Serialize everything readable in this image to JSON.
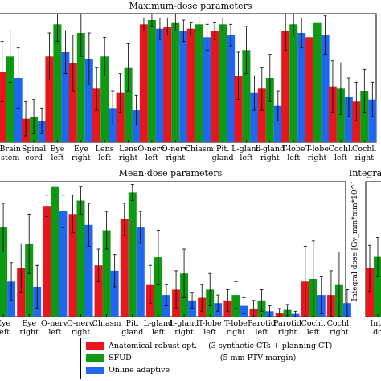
{
  "colors": {
    "red": "#e8171d",
    "green": "#0f9a14",
    "blue": "#1f66f0"
  },
  "chart_data": [
    {
      "type": "bar",
      "title": "Maximum-dose parameters",
      "categories": [
        [
          "Brain",
          "stem"
        ],
        [
          "Spinal",
          "cord"
        ],
        [
          "Eye",
          "left"
        ],
        [
          "Eye",
          "right"
        ],
        [
          "Lens",
          "left"
        ],
        [
          "Lens",
          "right"
        ],
        [
          "O-nerv.",
          "left"
        ],
        [
          "O-nerv.",
          "right"
        ],
        [
          "Chiasm"
        ],
        [
          "Pit.",
          "gland"
        ],
        [
          "L-gland",
          "left"
        ],
        [
          "L-gland",
          "right"
        ],
        [
          "T-lobe",
          "left"
        ],
        [
          "T-lobe",
          "right"
        ],
        [
          "Cochl.",
          "left"
        ],
        [
          "Cochl.",
          "right"
        ]
      ],
      "ylim": [
        0,
        60
      ],
      "series": [
        {
          "name": "Anatomical robust opt.",
          "values": [
            33,
            11,
            40,
            37,
            25,
            23,
            55,
            54,
            53,
            52,
            31,
            25,
            52,
            49,
            26,
            19
          ],
          "err": [
            14,
            8,
            11,
            13,
            10,
            9,
            3,
            4,
            3,
            4,
            11,
            10,
            9,
            12,
            12,
            9
          ]
        },
        {
          "name": "SFUD",
          "values": [
            40,
            12,
            55,
            51,
            40,
            35,
            57,
            56,
            55,
            55,
            43,
            30,
            55,
            56,
            25,
            24
          ],
          "err": [
            12,
            8,
            8,
            11,
            9,
            11,
            3,
            4,
            3,
            3,
            11,
            11,
            5,
            6,
            12,
            10
          ]
        },
        {
          "name": "Online adaptive",
          "values": [
            30,
            10,
            42,
            39,
            16,
            15,
            53,
            52,
            49,
            50,
            23,
            17,
            51,
            50,
            21,
            20
          ],
          "err": [
            14,
            6,
            10,
            12,
            8,
            7,
            5,
            5,
            6,
            5,
            8,
            7,
            7,
            9,
            9,
            8
          ]
        }
      ]
    },
    {
      "type": "bar",
      "title": "Mean-dose parameters",
      "categories": [
        [
          "Eye",
          "left"
        ],
        [
          "Eye",
          "right"
        ],
        [
          "O-nerv.",
          "left"
        ],
        [
          "O-nerv.",
          "right"
        ],
        [
          "Chiasm"
        ],
        [
          "Pit.",
          "gland"
        ],
        [
          "L-gland",
          "left"
        ],
        [
          "L-gland",
          "right"
        ],
        [
          "T-lobe",
          "left"
        ],
        [
          "T-lobe",
          "right"
        ],
        [
          "Parotid",
          "left"
        ],
        [
          "Parotid",
          "right"
        ],
        [
          "Cochl.",
          "left"
        ],
        [
          "Cochl.",
          "right"
        ]
      ],
      "ylim": [
        0,
        50
      ],
      "series": [
        {
          "name": "Anatomical robust opt.",
          "values": [
            19,
            18,
            41,
            38,
            19,
            36,
            12,
            10,
            7,
            6,
            3,
            1.5,
            13,
            8
          ],
          "err": [
            9,
            9,
            4,
            7,
            6,
            6,
            7,
            7,
            5,
            4,
            3,
            1.5,
            13,
            9
          ]
        },
        {
          "name": "SFUD",
          "values": [
            33,
            27,
            48,
            43,
            32,
            46,
            22,
            16,
            10,
            8,
            6,
            2.5,
            14,
            12
          ],
          "err": [
            9,
            11,
            3,
            5,
            7,
            3,
            10,
            9,
            6,
            5,
            4,
            2,
            14,
            12
          ]
        },
        {
          "name": "Online adaptive",
          "values": [
            13,
            11,
            39,
            34,
            17,
            33,
            8,
            6,
            5,
            4,
            2,
            1,
            8,
            5
          ],
          "err": [
            7,
            8,
            6,
            8,
            6,
            6,
            4,
            3,
            3,
            3,
            2,
            1,
            7,
            5
          ]
        }
      ]
    },
    {
      "type": "bar",
      "title": "Integra",
      "ylabel": "Integral dose [Gy_mm*mm*10^]",
      "categories": [
        [
          "Inte",
          "do"
        ]
      ],
      "ylim": [
        0,
        70
      ],
      "series": [
        {
          "name": "Anatomical robust opt.",
          "values": [
            25
          ],
          "err": [
            12
          ]
        },
        {
          "name": "SFUD",
          "values": [
            31
          ],
          "err": [
            10
          ]
        }
      ]
    }
  ],
  "legend": {
    "items": [
      {
        "label": "Anatomical robust opt.",
        "note": "(3 synthetic CTs + planning CT)"
      },
      {
        "label": "SFUD",
        "note": "(5 mm PTV margin)"
      },
      {
        "label": "Online adaptive",
        "note": ""
      }
    ]
  }
}
